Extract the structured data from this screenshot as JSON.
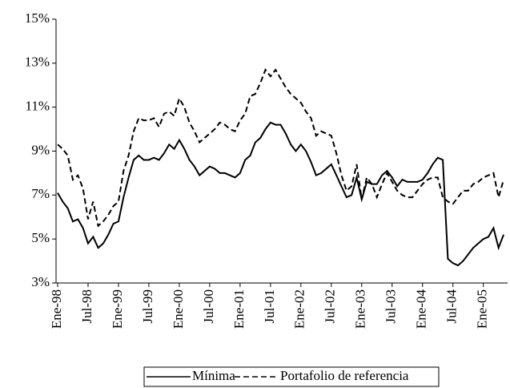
{
  "chart_data": {
    "type": "line",
    "categories": [
      "Ene-98",
      null,
      null,
      null,
      null,
      null,
      "Jul-98",
      null,
      null,
      null,
      null,
      null,
      "Ene-99",
      null,
      null,
      null,
      null,
      null,
      "Jul-99",
      null,
      null,
      null,
      null,
      null,
      "Ene-00",
      null,
      null,
      null,
      null,
      null,
      "Jul-00",
      null,
      null,
      null,
      null,
      null,
      "Ene-01",
      null,
      null,
      null,
      null,
      null,
      "Jul-01",
      null,
      null,
      null,
      null,
      null,
      "Ene-02",
      null,
      null,
      null,
      null,
      null,
      "Jul-02",
      null,
      null,
      null,
      null,
      null,
      "Ene-03",
      null,
      null,
      null,
      null,
      null,
      "Jul-03",
      null,
      null,
      null,
      null,
      null,
      "Ene-04",
      null,
      null,
      null,
      null,
      null,
      "Jul-04",
      null,
      null,
      null,
      null,
      null,
      "Ene-05",
      null,
      null,
      null,
      null
    ],
    "series": [
      {
        "name": "Mínima",
        "color": "#000000",
        "dash": false,
        "values": [
          7.1,
          6.7,
          6.4,
          5.8,
          5.9,
          5.5,
          4.8,
          5.1,
          4.6,
          4.8,
          5.2,
          5.7,
          5.8,
          6.9,
          7.8,
          8.6,
          8.8,
          8.6,
          8.6,
          8.7,
          8.6,
          8.9,
          9.3,
          9.1,
          9.5,
          9.1,
          8.6,
          8.3,
          7.9,
          8.1,
          8.3,
          8.2,
          8.0,
          8.0,
          7.9,
          7.8,
          8.0,
          8.6,
          8.8,
          9.4,
          9.6,
          10.0,
          10.3,
          10.2,
          10.2,
          9.8,
          9.3,
          9.0,
          9.3,
          9.0,
          8.5,
          7.9,
          8.0,
          8.2,
          8.4,
          7.9,
          7.4,
          6.9,
          7.0,
          7.8,
          6.8,
          7.6,
          7.5,
          7.5,
          7.9,
          8.1,
          7.8,
          7.4,
          7.7,
          7.6,
          7.6,
          7.6,
          7.7,
          8.0,
          8.4,
          8.7,
          8.6,
          4.1,
          3.9,
          3.8,
          4.0,
          4.3,
          4.6,
          4.8,
          5.0,
          5.1,
          5.5,
          4.6,
          5.2
        ]
      },
      {
        "name": "Portafolio de referencia",
        "color": "#000000",
        "dash": true,
        "values": [
          9.3,
          9.1,
          8.8,
          7.7,
          7.9,
          7.3,
          5.9,
          6.7,
          5.6,
          5.8,
          6.1,
          6.5,
          6.7,
          8.1,
          8.8,
          9.9,
          10.5,
          10.4,
          10.4,
          10.5,
          10.1,
          10.7,
          10.8,
          10.6,
          11.4,
          11.0,
          10.3,
          9.9,
          9.4,
          9.6,
          9.8,
          10.0,
          10.3,
          10.2,
          10.0,
          9.9,
          10.4,
          10.7,
          11.5,
          11.6,
          12.1,
          12.7,
          12.4,
          12.7,
          12.3,
          11.9,
          11.6,
          11.4,
          11.2,
          10.8,
          10.5,
          9.7,
          9.9,
          9.8,
          9.7,
          8.9,
          7.9,
          7.2,
          7.4,
          8.4,
          6.8,
          7.8,
          7.5,
          6.9,
          7.5,
          8.0,
          7.6,
          7.2,
          7.0,
          6.9,
          6.9,
          7.2,
          7.5,
          7.7,
          7.8,
          7.8,
          6.9,
          6.7,
          6.6,
          6.9,
          7.2,
          7.2,
          7.5,
          7.6,
          7.8,
          7.9,
          8.0,
          6.9,
          7.7
        ]
      }
    ],
    "ylim": [
      3,
      15
    ],
    "yticks": [
      {
        "value": 3,
        "label": "3%"
      },
      {
        "value": 5,
        "label": "5%"
      },
      {
        "value": 7,
        "label": "7%"
      },
      {
        "value": 9,
        "label": "9%"
      },
      {
        "value": 11,
        "label": "11%"
      },
      {
        "value": 13,
        "label": "13%"
      },
      {
        "value": 15,
        "label": "15%"
      }
    ],
    "grid": false,
    "legend": "bottom"
  }
}
